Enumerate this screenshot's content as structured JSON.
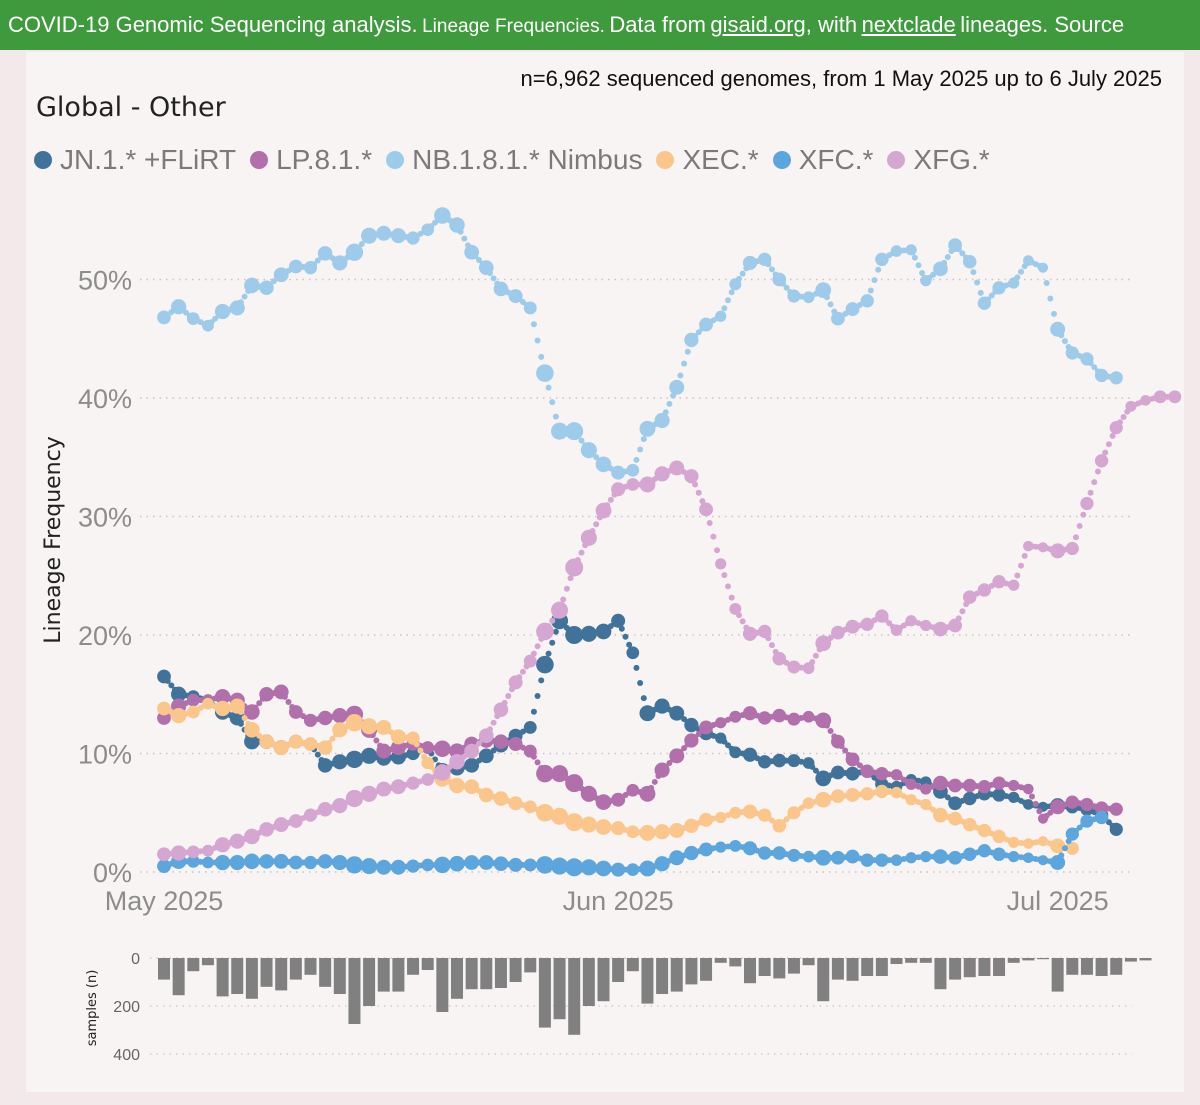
{
  "banner": {
    "part1": "COVID-19 Genomic Sequencing analysis.",
    "part2": "Lineage Frequencies.",
    "part3": "Data from",
    "link1": "gisaid.org",
    "part4": ", with",
    "link2": "nextclade",
    "part5": "lineages. Source"
  },
  "subtitle": "n=6,962 sequenced genomes, from 1 May 2025 up to 6 July 2025",
  "region": "Global - Other",
  "chart_data": [
    {
      "type": "line",
      "ylabel": "Lineage Frequency",
      "ylim": [
        0,
        57
      ],
      "yticks": [
        {
          "v": 0,
          "label": "0%"
        },
        {
          "v": 10,
          "label": "10%"
        },
        {
          "v": 20,
          "label": "20%"
        },
        {
          "v": 30,
          "label": "30%"
        },
        {
          "v": 40,
          "label": "40%"
        },
        {
          "v": 50,
          "label": "50%"
        }
      ],
      "xticks": [
        {
          "d": 0,
          "label": "May 2025"
        },
        {
          "d": 31,
          "label": "Jun 2025"
        },
        {
          "d": 61,
          "label": "Jul 2025"
        }
      ],
      "grid": true,
      "legend_position": "top-left",
      "series": [
        {
          "name": "JN.1.* +FLiRT",
          "color": "#41739a",
          "values": [
            16.5,
            15,
            14.8,
            14.5,
            13.5,
            13,
            11,
            11,
            10.5,
            11,
            10.8,
            9,
            9.3,
            9.5,
            9.8,
            9.6,
            9.7,
            10,
            10.5,
            8.5,
            8.8,
            9,
            9.8,
            10.7,
            11.5,
            12.2,
            17.5,
            21.2,
            20,
            20.1,
            20.3,
            21.2,
            18.5,
            13.4,
            14,
            13.4,
            12.4,
            11.7,
            11.3,
            10.1,
            9.9,
            9.3,
            9.4,
            9.4,
            9.2,
            7.9,
            8.4,
            8.3,
            8.5,
            7.4,
            7.2,
            7.8,
            7.6,
            6.8,
            5.8,
            6.2,
            6.6,
            6.5,
            6.3,
            5.7,
            5.5,
            5.6,
            5.5,
            5.3,
            4.8,
            3.6
          ]
        },
        {
          "name": "LP.8.1.*",
          "color": "#b170ab",
          "values": [
            13,
            14,
            14.5,
            14.5,
            14.8,
            14.5,
            13.5,
            15,
            15.2,
            13.5,
            12.8,
            13,
            13.2,
            13.3,
            12,
            10.2,
            10.5,
            10.8,
            10.5,
            10.4,
            10.2,
            10.8,
            11.1,
            11,
            10.8,
            10.2,
            8.3,
            8.3,
            7.5,
            6.6,
            5.9,
            6.1,
            6.9,
            6.6,
            8.6,
            9.8,
            11.1,
            12.2,
            12.6,
            13.1,
            13.4,
            13,
            13.2,
            12.9,
            13.1,
            12.8,
            11,
            9.5,
            8.5,
            8.3,
            8.2,
            7.4,
            7,
            7.5,
            7.3,
            7.3,
            7.2,
            7.5,
            7.3,
            7,
            4.5,
            5.5,
            5.9,
            5.7,
            5.4,
            5.3
          ]
        },
        {
          "name": "NB.1.8.1.* Nimbus",
          "color": "#9ecbea",
          "values": [
            46.8,
            47.7,
            46.7,
            46.1,
            47.3,
            47.6,
            49.5,
            49.3,
            50.4,
            51.1,
            51,
            52.2,
            51.4,
            52.3,
            53.7,
            53.9,
            53.7,
            53.5,
            54.2,
            55.4,
            54.6,
            52.3,
            51,
            49.2,
            48.6,
            47.6,
            42.1,
            37.2,
            37.2,
            35.6,
            34.4,
            33.7,
            33.9,
            37.4,
            38.1,
            40.9,
            44.9,
            46.2,
            46.9,
            49.6,
            51.4,
            51.7,
            50,
            48.6,
            48.5,
            49.1,
            46.7,
            47.5,
            48.2,
            51.7,
            52.4,
            52.5,
            49.9,
            50.9,
            52.9,
            51.5,
            48,
            49.3,
            49.7,
            51.6,
            51,
            45.8,
            43.8,
            43.3,
            41.9,
            41.7
          ]
        },
        {
          "name": "XEC.*",
          "color": "#fac68b",
          "values": [
            13.8,
            13.2,
            13.5,
            14.2,
            13.8,
            14,
            12,
            11,
            10.5,
            11,
            10.8,
            10.5,
            12,
            12.6,
            12.3,
            12.2,
            11.4,
            11.3,
            9.2,
            7.9,
            7.3,
            7.2,
            6.5,
            6.2,
            5.8,
            5.5,
            5,
            4.7,
            4.2,
            4,
            3.8,
            3.7,
            3.4,
            3.3,
            3.4,
            3.5,
            3.9,
            4.4,
            4.6,
            5,
            5.1,
            4.8,
            3.9,
            5,
            5.8,
            6.1,
            6.4,
            6.5,
            6.6,
            6.8,
            6.7,
            6.1,
            5.7,
            4.8,
            4.5,
            4,
            3.5,
            3,
            2.5,
            2.4,
            2.6,
            2.2,
            2
          ]
        },
        {
          "name": "XFC.*",
          "color": "#5ca6dd",
          "values": [
            0.5,
            0.9,
            0.9,
            0.8,
            0.8,
            0.8,
            0.9,
            0.9,
            0.9,
            0.8,
            0.8,
            0.9,
            0.8,
            0.6,
            0.5,
            0.4,
            0.4,
            0.5,
            0.6,
            0.6,
            0.7,
            0.8,
            0.8,
            0.7,
            0.6,
            0.6,
            0.6,
            0.5,
            0.4,
            0.4,
            0.3,
            0.2,
            0.2,
            0.3,
            0.7,
            1.2,
            1.6,
            1.9,
            2.1,
            2.2,
            2,
            1.6,
            1.6,
            1.4,
            1.3,
            1.2,
            1.2,
            1.3,
            1,
            1,
            1,
            1.2,
            1.3,
            1.3,
            1.2,
            1.5,
            1.8,
            1.5,
            1.3,
            1.2,
            1,
            0.8,
            3.2,
            4.3,
            4.6
          ]
        },
        {
          "name": "XFG.*",
          "color": "#d5a6d2",
          "values": [
            1.5,
            1.6,
            1.7,
            1.8,
            2.3,
            2.6,
            3,
            3.6,
            4,
            4.3,
            4.8,
            5.3,
            5.6,
            6.2,
            6.6,
            7,
            7.2,
            7.5,
            7.8,
            8.4,
            9.3,
            10.2,
            11.5,
            13.7,
            16,
            17.8,
            20.3,
            22.1,
            25.7,
            28.2,
            30.5,
            32.3,
            32.7,
            32.7,
            33.6,
            34.1,
            33.4,
            30.6,
            26,
            22.2,
            20.1,
            20.3,
            18,
            17.3,
            17.2,
            19.3,
            20.2,
            20.7,
            20.9,
            21.6,
            20.4,
            21.2,
            20.8,
            20.5,
            20.8,
            23.2,
            23.8,
            24.5,
            24.2,
            27.5,
            27.4,
            27.1,
            27.3,
            31.1,
            34.7,
            37.5,
            39.3,
            39.8,
            40.1,
            40.1
          ]
        }
      ]
    },
    {
      "type": "bar",
      "ylabel": "samples (n)",
      "ylim": [
        0,
        400
      ],
      "yticks": [
        {
          "v": 0,
          "label": "0"
        },
        {
          "v": 200,
          "label": "200"
        },
        {
          "v": 400,
          "label": "400"
        }
      ],
      "color": "#808080",
      "values": [
        90,
        155,
        55,
        30,
        160,
        150,
        170,
        120,
        135,
        90,
        70,
        120,
        150,
        275,
        200,
        140,
        140,
        70,
        50,
        225,
        170,
        130,
        130,
        125,
        100,
        60,
        290,
        255,
        320,
        200,
        180,
        100,
        55,
        190,
        150,
        140,
        110,
        95,
        20,
        35,
        105,
        75,
        85,
        65,
        30,
        180,
        90,
        95,
        75,
        75,
        25,
        20,
        20,
        130,
        90,
        80,
        75,
        75,
        20,
        10,
        5,
        140,
        70,
        70,
        75,
        70,
        15,
        10
      ]
    }
  ]
}
